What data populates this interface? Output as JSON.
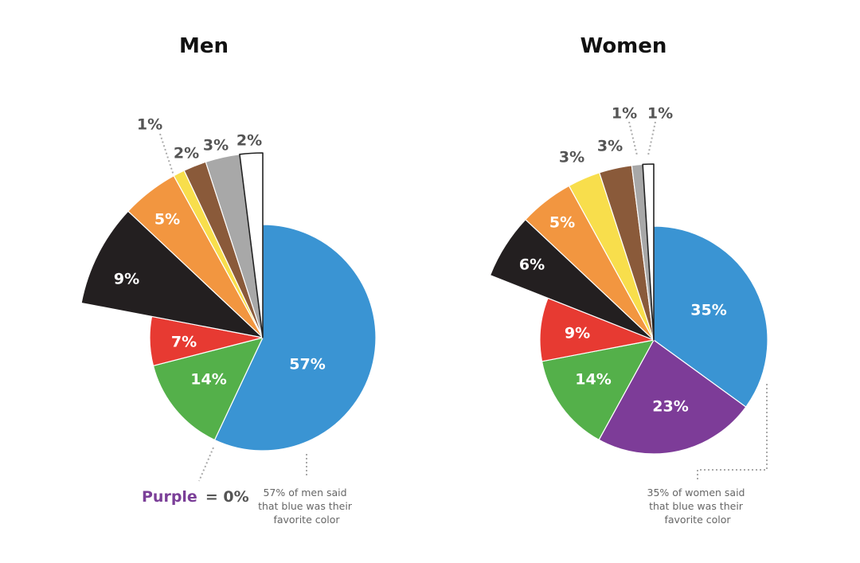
{
  "chart_data": [
    {
      "type": "pie",
      "title": "Men",
      "slices": [
        {
          "label": "57%",
          "value": 57,
          "color": "#3a94d3",
          "exploded": false
        },
        {
          "label": "14%",
          "value": 14,
          "color": "#54b04a",
          "exploded": false
        },
        {
          "label": "7%",
          "value": 7,
          "color": "#e73a32",
          "exploded": false
        },
        {
          "label": "9%",
          "value": 9,
          "color": "#231f20",
          "exploded": true
        },
        {
          "label": "5%",
          "value": 5,
          "color": "#f29640",
          "exploded": true
        },
        {
          "label": "1%",
          "value": 1,
          "color": "#f8de4c",
          "exploded": true
        },
        {
          "label": "2%",
          "value": 2,
          "color": "#8a5a3a",
          "exploded": true
        },
        {
          "label": "3%",
          "value": 3,
          "color": "#a8a8a8",
          "exploded": true
        },
        {
          "label": "2%",
          "value": 2,
          "color": "#ffffff",
          "exploded": true
        }
      ],
      "annotations": {
        "purple_word": "Purple",
        "purple_value": "= 0%",
        "note": [
          "57% of men said",
          "that blue was their",
          "favorite color"
        ]
      }
    },
    {
      "type": "pie",
      "title": "Women",
      "slices": [
        {
          "label": "35%",
          "value": 35,
          "color": "#3a94d3",
          "exploded": false
        },
        {
          "label": "23%",
          "value": 23,
          "color": "#7d3c98",
          "exploded": false
        },
        {
          "label": "14%",
          "value": 14,
          "color": "#54b04a",
          "exploded": false
        },
        {
          "label": "9%",
          "value": 9,
          "color": "#e73a32",
          "exploded": false
        },
        {
          "label": "6%",
          "value": 6,
          "color": "#231f20",
          "exploded": true
        },
        {
          "label": "5%",
          "value": 5,
          "color": "#f29640",
          "exploded": true
        },
        {
          "label": "3%",
          "value": 3,
          "color": "#f8de4c",
          "exploded": true
        },
        {
          "label": "3%",
          "value": 3,
          "color": "#8a5a3a",
          "exploded": true
        },
        {
          "label": "1%",
          "value": 1,
          "color": "#a8a8a8",
          "exploded": true
        },
        {
          "label": "1%",
          "value": 1,
          "color": "#ffffff",
          "exploded": true
        }
      ],
      "annotations": {
        "note": [
          "35% of women said",
          "that blue was their",
          "favorite color"
        ]
      }
    }
  ]
}
